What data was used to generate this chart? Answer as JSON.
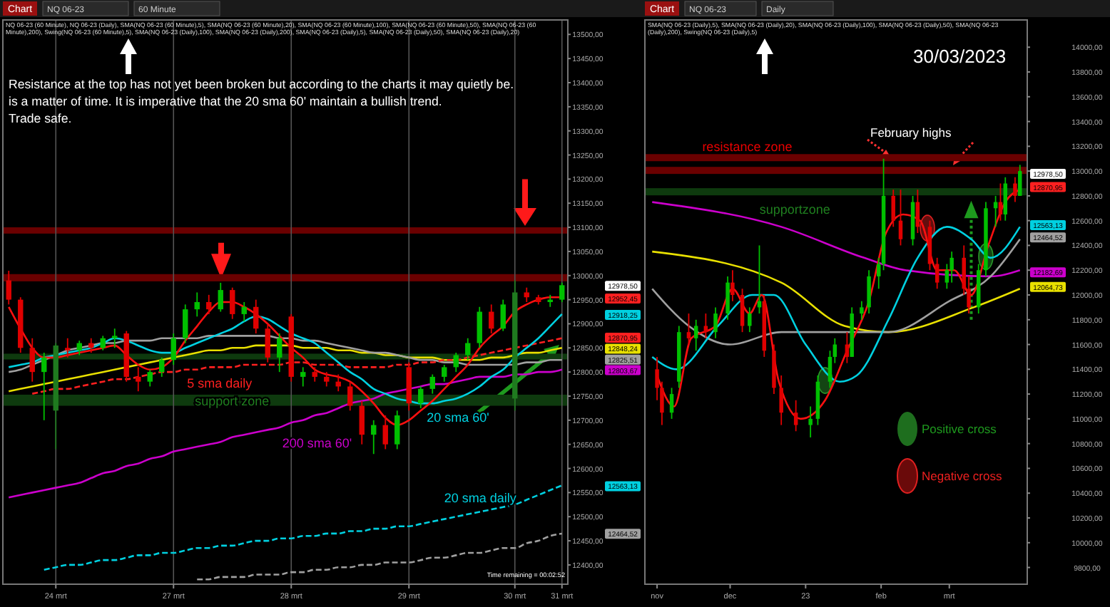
{
  "chart_data": [
    {
      "type": "candlestick",
      "ylim": [
        12360,
        13530
      ],
      "grid": "x",
      "categories": [
        null,
        null,
        null,
        null,
        "24 mrt",
        null,
        null,
        null,
        null,
        null,
        null,
        null,
        null,
        null,
        "27 mrt",
        null,
        null,
        null,
        null,
        null,
        null,
        null,
        null,
        null,
        "28 mrt",
        null,
        null,
        null,
        null,
        null,
        null,
        null,
        null,
        null,
        "29 mrt",
        null,
        null,
        null,
        null,
        null,
        null,
        null,
        null,
        "30 mrt",
        null,
        null,
        null,
        "31 mrt"
      ],
      "yticks": [
        {
          "value": 12400,
          "label": "12400,00"
        },
        {
          "value": 12450,
          "label": "12450,00"
        },
        {
          "value": 12500,
          "label": "12500,00"
        },
        {
          "value": 12550,
          "label": "12550,00"
        },
        {
          "value": 12600,
          "label": "12600,00"
        },
        {
          "value": 12650,
          "label": "12650,00"
        },
        {
          "value": 12700,
          "label": "12700,00"
        },
        {
          "value": 12750,
          "label": "12750,00"
        },
        {
          "value": 12800,
          "label": "12800,00"
        },
        {
          "value": 12850,
          "label": "12850,00"
        },
        {
          "value": 12900,
          "label": "12900,00"
        },
        {
          "value": 12950,
          "label": "12950,00"
        },
        {
          "value": 13000,
          "label": "13000,00"
        },
        {
          "value": 13050,
          "label": "13050,00"
        },
        {
          "value": 13100,
          "label": "13100,00"
        },
        {
          "value": 13150,
          "label": "13150,00"
        },
        {
          "value": 13200,
          "label": "13200,00"
        },
        {
          "value": 13250,
          "label": "13250,00"
        },
        {
          "value": 13300,
          "label": "13300,00"
        },
        {
          "value": 13350,
          "label": "13350,00"
        },
        {
          "value": 13400,
          "label": "13400,00"
        },
        {
          "value": 13450,
          "label": "13450,00"
        },
        {
          "value": 13500,
          "label": "13500,00"
        }
      ],
      "ohlc": [
        [
          12990,
          13010,
          12940,
          12950
        ],
        [
          12950,
          12955,
          12840,
          12850
        ],
        [
          12850,
          12870,
          12780,
          12800
        ],
        [
          12800,
          12840,
          12700,
          12830
        ],
        [
          12720,
          12860,
          12640,
          12855
        ],
        [
          12850,
          12870,
          12830,
          12845
        ],
        [
          12845,
          12865,
          12835,
          12860
        ],
        [
          12860,
          12870,
          12840,
          12850
        ],
        [
          12850,
          12875,
          12845,
          12870
        ],
        [
          12870,
          12890,
          12850,
          12875
        ],
        [
          12880,
          12885,
          12780,
          12790
        ],
        [
          12790,
          12810,
          12760,
          12780
        ],
        [
          12780,
          12805,
          12770,
          12800
        ],
        [
          12800,
          12830,
          12790,
          12825
        ],
        [
          12825,
          12880,
          12815,
          12870
        ],
        [
          12870,
          12940,
          12860,
          12930
        ],
        [
          12930,
          12965,
          12915,
          12945
        ],
        [
          12945,
          12960,
          12920,
          12930
        ],
        [
          12930,
          12985,
          12925,
          12970
        ],
        [
          12970,
          12975,
          12910,
          12920
        ],
        [
          12920,
          12945,
          12905,
          12935
        ],
        [
          12935,
          12950,
          12880,
          12890
        ],
        [
          12890,
          12900,
          12820,
          12830
        ],
        [
          12830,
          12880,
          12800,
          12870
        ],
        [
          12915,
          12920,
          12780,
          12790
        ],
        [
          12790,
          12810,
          12770,
          12800
        ],
        [
          12800,
          12810,
          12780,
          12790
        ],
        [
          12790,
          12800,
          12770,
          12780
        ],
        [
          12780,
          12795,
          12760,
          12770
        ],
        [
          12770,
          12780,
          12720,
          12730
        ],
        [
          12730,
          12740,
          12650,
          12670
        ],
        [
          12670,
          12700,
          12630,
          12690
        ],
        [
          12690,
          12710,
          12640,
          12650
        ],
        [
          12650,
          12720,
          12640,
          12710
        ],
        [
          12810,
          12820,
          12720,
          12735
        ],
        [
          12735,
          12770,
          12725,
          12765
        ],
        [
          12765,
          12795,
          12755,
          12790
        ],
        [
          12790,
          12815,
          12780,
          12810
        ],
        [
          12810,
          12840,
          12800,
          12835
        ],
        [
          12835,
          12870,
          12825,
          12860
        ],
        [
          12860,
          12935,
          12850,
          12925
        ],
        [
          12925,
          12940,
          12880,
          12890
        ],
        [
          12890,
          12950,
          12885,
          12940
        ],
        [
          12745,
          12990,
          12720,
          12965
        ],
        [
          12965,
          12975,
          12945,
          12955
        ],
        [
          12955,
          12960,
          12940,
          12945
        ],
        [
          12945,
          12960,
          12935,
          12950
        ],
        [
          12950,
          12985,
          12945,
          12980
        ]
      ],
      "colors": [
        "#e00000",
        "#e00000",
        "#e00000",
        "#00c000",
        "#1f7a1f",
        "#e00000",
        "#00c000",
        "#e00000",
        "#00c000",
        "#00c000",
        "#e00000",
        "#e00000",
        "#00c000",
        "#00c000",
        "#00c000",
        "#00c000",
        "#00c000",
        "#e00000",
        "#00c000",
        "#e00000",
        "#00c000",
        "#e00000",
        "#e00000",
        "#00c000",
        "#e00000",
        "#00c000",
        "#e00000",
        "#e00000",
        "#e00000",
        "#e00000",
        "#e00000",
        "#00c000",
        "#e00000",
        "#00c000",
        "#e00000",
        "#00c000",
        "#00c000",
        "#00c000",
        "#00c000",
        "#00c000",
        "#00c000",
        "#e00000",
        "#00c000",
        "#1f7a1f",
        "#e00000",
        "#e00000",
        "#00c000",
        "#00c000"
      ],
      "series": [
        {
          "type": "line",
          "color": "#cc00cc",
          "name": "200 sma 60'",
          "values": [
            12540,
            12545,
            12550,
            12555,
            12560,
            12565,
            12570,
            12580,
            12590,
            12595,
            12605,
            12610,
            12620,
            12625,
            12635,
            12640,
            12645,
            12650,
            12655,
            12665,
            12670,
            12675,
            12680,
            12685,
            12695,
            12700,
            12710,
            12715,
            12725,
            12735,
            12740,
            12745,
            12755,
            12760,
            12765,
            12770,
            12775,
            12775,
            12780,
            12785,
            12790,
            12790,
            12790,
            12795,
            12795,
            12800,
            12800,
            12805
          ]
        },
        {
          "type": "line",
          "color": "#00d0e0",
          "line_style": "dashed",
          "name": "20 sma daily",
          "values": [
            null,
            null,
            null,
            12390,
            12395,
            12400,
            12400,
            12405,
            12410,
            12410,
            12415,
            12420,
            12420,
            12425,
            12425,
            12430,
            12435,
            12435,
            12440,
            12440,
            12445,
            12450,
            12450,
            12455,
            12455,
            12460,
            12460,
            12465,
            12465,
            12470,
            12470,
            12475,
            12475,
            12480,
            12480,
            12485,
            12490,
            12495,
            12500,
            12505,
            12510,
            12515,
            12520,
            12525,
            12535,
            12545,
            12555,
            12565
          ]
        },
        {
          "type": "line",
          "color": "#a0a0a0",
          "line_style": "dashed",
          "values": [
            null,
            null,
            null,
            null,
            null,
            null,
            null,
            null,
            null,
            null,
            null,
            null,
            null,
            null,
            null,
            null,
            12370,
            12370,
            12375,
            12375,
            12375,
            12380,
            12380,
            12380,
            12385,
            12385,
            12390,
            12390,
            12395,
            12395,
            12400,
            12400,
            12405,
            12405,
            12405,
            12410,
            12415,
            12415,
            12420,
            12425,
            12425,
            12430,
            12435,
            12435,
            12445,
            12450,
            12460,
            12465
          ]
        },
        {
          "type": "line",
          "color": "#e8e000",
          "values": [
            12760,
            12765,
            12770,
            12775,
            12780,
            12785,
            12790,
            12795,
            12800,
            12805,
            12810,
            12815,
            12820,
            12825,
            12830,
            12835,
            12840,
            12845,
            12845,
            12850,
            12850,
            12855,
            12855,
            12855,
            12855,
            12850,
            12850,
            12850,
            12845,
            12845,
            12840,
            12840,
            12835,
            12835,
            12830,
            12830,
            12830,
            12825,
            12825,
            12825,
            12825,
            12830,
            12830,
            12835,
            12840,
            12840,
            12845,
            12850
          ]
        },
        {
          "type": "line",
          "color": "#a0a0a0",
          "values": [
            12800,
            12805,
            12815,
            12825,
            12835,
            12845,
            12850,
            12855,
            12860,
            12860,
            12865,
            12865,
            12865,
            12870,
            12870,
            12870,
            12870,
            12875,
            12875,
            12875,
            12875,
            12875,
            12875,
            12870,
            12870,
            12865,
            12865,
            12860,
            12855,
            12850,
            12845,
            12840,
            12840,
            12835,
            12830,
            12825,
            12825,
            12820,
            12820,
            12815,
            12815,
            12815,
            12815,
            12815,
            12820,
            12820,
            12825,
            12825
          ]
        },
        {
          "type": "line",
          "color": "#ff2020",
          "line_style": "dashed",
          "name": "5 sma daily",
          "values": [
            null,
            null,
            12755,
            12760,
            12765,
            12765,
            12770,
            12775,
            12780,
            12785,
            12785,
            12790,
            12795,
            12800,
            12800,
            12805,
            12805,
            12810,
            12810,
            12810,
            12815,
            12815,
            12815,
            12815,
            12820,
            12820,
            12815,
            12815,
            12815,
            12810,
            12810,
            12810,
            12810,
            12815,
            12815,
            12820,
            12820,
            12825,
            12825,
            12830,
            12835,
            12840,
            12845,
            12850,
            12855,
            12860,
            12865,
            12870
          ]
        },
        {
          "type": "line",
          "color": "#00d0e0",
          "name": "20 sma 60'",
          "values": [
            12810,
            12815,
            12820,
            12830,
            12835,
            12840,
            12845,
            12850,
            12860,
            12870,
            12865,
            12855,
            12845,
            12840,
            12840,
            12850,
            12860,
            12870,
            12880,
            12890,
            12905,
            12915,
            12910,
            12895,
            12880,
            12870,
            12860,
            12840,
            12820,
            12800,
            12785,
            12765,
            12755,
            12745,
            12740,
            12735,
            12735,
            12740,
            12745,
            12755,
            12770,
            12790,
            12805,
            12830,
            12850,
            12870,
            12895,
            12920
          ]
        },
        {
          "type": "line",
          "color": "#ff1010",
          "values": [
            12935,
            12890,
            12850,
            12830,
            12830,
            12835,
            12840,
            12845,
            12850,
            12855,
            12835,
            12815,
            12805,
            12810,
            12830,
            12865,
            12895,
            12925,
            12945,
            12945,
            12935,
            12920,
            12900,
            12875,
            12850,
            12830,
            12805,
            12795,
            12790,
            12780,
            12760,
            12735,
            12705,
            12690,
            12700,
            12720,
            12740,
            12765,
            12790,
            12815,
            12850,
            12875,
            12895,
            12925,
            12940,
            12950,
            12955,
            12955
          ]
        }
      ],
      "bands": [
        {
          "axis": "y",
          "from": 13087,
          "to": 13100,
          "color": "#6a0000"
        },
        {
          "axis": "y",
          "from": 12988,
          "to": 13003,
          "color": "#6a0000"
        },
        {
          "axis": "y",
          "from": 12826,
          "to": 12838,
          "color": "#0e3a0e"
        },
        {
          "axis": "y",
          "from": 12730,
          "to": 12753,
          "color": "#0e3a0e",
          "label": "support zone"
        }
      ],
      "annotations": [
        "Chart",
        "NQ 06-23",
        "60 Minute",
        "NQ 06-23 (60 Minute), NQ 06-23 (Daily), SMA(NQ 06-23 (60 Minute),5), SMA(NQ 06-23 (60 Minute),20), SMA(NQ 06-23 (60 Minute),100), SMA(NQ 06-23 (60 Minute),50), SMA(NQ 06-23 (60 Minute),200), Swing(NQ 06-23 (60 Minute),5), SMA(NQ 06-23 (Daily),100), SMA(NQ 06-23 (Daily),200), SMA(NQ 06-23 (Daily),5), SMA(NQ 06-23 (Daily),50), SMA(NQ 06-23 (Daily),20)",
        "Resistance at the top has not yet been broken but according to the charts it may quietly be.",
        "is a matter of time. It is imperative that the 20 sma 60' maintain a bullish trend.",
        "Trade safe.",
        "Time remaining = 00:02:52",
        "12978,50",
        "12952,45",
        "12918,25",
        "12870,95",
        "12848,24",
        "12825,51",
        "12803,67",
        "12563,13",
        "12464,52"
      ]
    },
    {
      "type": "candlestick",
      "xlim": [
        "2022-10-27",
        "2023-04-02"
      ],
      "ylim": [
        9665,
        14220
      ],
      "xticks": [
        {
          "value": "2022-11-01",
          "label": "nov"
        },
        {
          "value": "2022-12-01",
          "label": "dec"
        },
        {
          "value": "2023-01-01",
          "label": "23"
        },
        {
          "value": "2023-02-01",
          "label": "feb"
        },
        {
          "value": "2023-03-01",
          "label": "mrt"
        }
      ],
      "yticks": [
        {
          "value": 9800,
          "label": "9800,00"
        },
        {
          "value": 10000,
          "label": "10000,00"
        },
        {
          "value": 10200,
          "label": "10200,00"
        },
        {
          "value": 10400,
          "label": "10400,00"
        },
        {
          "value": 10600,
          "label": "10600,00"
        },
        {
          "value": 10800,
          "label": "10800,00"
        },
        {
          "value": 11000,
          "label": "11000,00"
        },
        {
          "value": 11200,
          "label": "11200,00"
        },
        {
          "value": 11400,
          "label": "11400,00"
        },
        {
          "value": 11600,
          "label": "11600,00"
        },
        {
          "value": 11800,
          "label": "11800,00"
        },
        {
          "value": 12000,
          "label": "12000,00"
        },
        {
          "value": 12200,
          "label": "12200,00"
        },
        {
          "value": 12400,
          "label": "12400,00"
        },
        {
          "value": 12600,
          "label": "12600,00"
        },
        {
          "value": 12800,
          "label": "12800,00"
        },
        {
          "value": 13000,
          "label": "13000,00"
        },
        {
          "value": 13200,
          "label": "13200,00"
        },
        {
          "value": 13400,
          "label": "13400,00"
        },
        {
          "value": 13600,
          "label": "13600,00"
        },
        {
          "value": 13800,
          "label": "13800,00"
        },
        {
          "value": 14000,
          "label": "14000,00"
        }
      ],
      "x": [
        "2022-11-01",
        "2022-11-03",
        "2022-11-07",
        "2022-11-10",
        "2022-11-14",
        "2022-11-17",
        "2022-11-21",
        "2022-11-25",
        "2022-11-30",
        "2022-12-02",
        "2022-12-06",
        "2022-12-09",
        "2022-12-13",
        "2022-12-15",
        "2022-12-19",
        "2022-12-22",
        "2022-12-28",
        "2023-01-03",
        "2023-01-06",
        "2023-01-11",
        "2023-01-13",
        "2023-01-18",
        "2023-01-20",
        "2023-01-24",
        "2023-01-27",
        "2023-01-31",
        "2023-02-02",
        "2023-02-06",
        "2023-02-09",
        "2023-02-14",
        "2023-02-16",
        "2023-02-21",
        "2023-02-24",
        "2023-02-28",
        "2023-03-02",
        "2023-03-07",
        "2023-03-09",
        "2023-03-13",
        "2023-03-16",
        "2023-03-20",
        "2023-03-22",
        "2023-03-24",
        "2023-03-28",
        "2023-03-30"
      ],
      "ohlc": [
        [
          11400,
          11500,
          11150,
          11250
        ],
        [
          11250,
          11300,
          10950,
          11050
        ],
        [
          11050,
          11250,
          11000,
          11200
        ],
        [
          11300,
          11750,
          11250,
          11700
        ],
        [
          11700,
          11850,
          11600,
          11650
        ],
        [
          11650,
          11800,
          11550,
          11750
        ],
        [
          11750,
          11850,
          11650,
          11700
        ],
        [
          11700,
          11900,
          11650,
          11850
        ],
        [
          11850,
          12150,
          11800,
          12100
        ],
        [
          12100,
          12200,
          11950,
          12000
        ],
        [
          12000,
          12050,
          11700,
          11750
        ],
        [
          11750,
          11900,
          11700,
          11850
        ],
        [
          11900,
          12400,
          11850,
          11950
        ],
        [
          11950,
          12000,
          11500,
          11550
        ],
        [
          11550,
          11600,
          11200,
          11250
        ],
        [
          11250,
          11350,
          10950,
          11050
        ],
        [
          11050,
          11150,
          10900,
          10950
        ],
        [
          10950,
          11100,
          10850,
          11000
        ],
        [
          11000,
          11350,
          10950,
          11300
        ],
        [
          11300,
          11550,
          11250,
          11500
        ],
        [
          11500,
          11650,
          11450,
          11600
        ],
        [
          11600,
          11700,
          11450,
          11500
        ],
        [
          11500,
          11900,
          11500,
          11850
        ],
        [
          11850,
          11950,
          11800,
          11900
        ],
        [
          11900,
          12200,
          11850,
          12150
        ],
        [
          12150,
          12300,
          12050,
          12250
        ],
        [
          12250,
          13100,
          12200,
          12800
        ],
        [
          12800,
          12850,
          12550,
          12600
        ],
        [
          12600,
          12850,
          12400,
          12450
        ],
        [
          12450,
          12800,
          12400,
          12750
        ],
        [
          12750,
          12850,
          12500,
          12550
        ],
        [
          12550,
          12600,
          12200,
          12250
        ],
        [
          12250,
          12300,
          12050,
          12100
        ],
        [
          12100,
          12250,
          12050,
          12200
        ],
        [
          12200,
          12350,
          12100,
          12300
        ],
        [
          12300,
          12400,
          12000,
          12050
        ],
        [
          12050,
          12150,
          11850,
          11900
        ],
        [
          11900,
          12250,
          11850,
          12200
        ],
        [
          12200,
          12750,
          12150,
          12700
        ],
        [
          12700,
          12800,
          12550,
          12750
        ],
        [
          12750,
          12900,
          12600,
          12650
        ],
        [
          12650,
          12950,
          12600,
          12900
        ],
        [
          12900,
          12950,
          12750,
          12800
        ],
        [
          12800,
          13050,
          12800,
          13000
        ]
      ],
      "colors": [
        "#e00000",
        "#e00000",
        "#00c000",
        "#00c000",
        "#e00000",
        "#00c000",
        "#e00000",
        "#00c000",
        "#00c000",
        "#e00000",
        "#e00000",
        "#00c000",
        "#00c000",
        "#e00000",
        "#e00000",
        "#e00000",
        "#e00000",
        "#00c000",
        "#00c000",
        "#00c000",
        "#00c000",
        "#e00000",
        "#00c000",
        "#00c000",
        "#00c000",
        "#00c000",
        "#00c000",
        "#e00000",
        "#e00000",
        "#00c000",
        "#e00000",
        "#e00000",
        "#e00000",
        "#00c000",
        "#00c000",
        "#e00000",
        "#e00000",
        "#00c000",
        "#00c000",
        "#00c000",
        "#e00000",
        "#00c000",
        "#e00000",
        "#00c000"
      ],
      "series": [
        {
          "type": "line",
          "color": "#cc00cc",
          "x": [
            "2022-10-30",
            "2022-12-22",
            "2023-01-25",
            "2023-02-11",
            "2023-03-18",
            "2023-03-30"
          ],
          "values": [
            12750,
            12550,
            12300,
            12200,
            12150,
            12200
          ]
        },
        {
          "type": "line",
          "color": "#e8e000",
          "x": [
            "2022-10-30",
            "2022-12-22",
            "2023-01-17",
            "2023-02-04",
            "2023-03-11",
            "2023-03-30"
          ],
          "values": [
            12350,
            12100,
            11750,
            11700,
            11900,
            12050
          ]
        },
        {
          "type": "line",
          "color": "#a0a0a0",
          "x": [
            "2022-10-30",
            "2022-11-14",
            "2022-12-01",
            "2022-12-22",
            "2023-01-17",
            "2023-02-04",
            "2023-03-01",
            "2023-03-18",
            "2023-03-30"
          ],
          "values": [
            12050,
            11750,
            11600,
            11700,
            11700,
            11700,
            11950,
            12150,
            12450
          ]
        },
        {
          "type": "line",
          "color": "#00d0e0",
          "x": [
            "2022-10-30",
            "2022-11-09",
            "2022-11-26",
            "2022-12-10",
            "2022-12-19",
            "2023-01-01",
            "2023-01-15",
            "2023-01-22",
            "2023-02-04",
            "2023-02-16",
            "2023-02-28",
            "2023-03-10",
            "2023-03-18",
            "2023-03-30"
          ],
          "values": [
            11500,
            11400,
            11750,
            12000,
            12000,
            11600,
            11300,
            11350,
            11800,
            12300,
            12550,
            12450,
            12300,
            12550
          ]
        },
        {
          "type": "line",
          "color": "#ff1010",
          "x": [
            "2022-11-01",
            "2022-11-08",
            "2022-11-15",
            "2022-11-25",
            "2022-12-02",
            "2022-12-09",
            "2022-12-14",
            "2022-12-21",
            "2022-12-30",
            "2023-01-09",
            "2023-01-18",
            "2023-01-27",
            "2023-02-03",
            "2023-02-10",
            "2023-02-17",
            "2023-02-24",
            "2023-03-03",
            "2023-03-10",
            "2023-03-17",
            "2023-03-24",
            "2023-03-30"
          ],
          "values": [
            11350,
            11100,
            11650,
            11750,
            12050,
            11850,
            12000,
            11300,
            11000,
            11150,
            11550,
            11950,
            12500,
            12650,
            12600,
            12200,
            12200,
            12000,
            12400,
            12750,
            12850
          ]
        }
      ],
      "bands": [
        {
          "axis": "y",
          "from": 13080,
          "to": 13137,
          "color": "#6a0000",
          "label": "resistance zone"
        },
        {
          "axis": "y",
          "from": 12977,
          "to": 13034,
          "color": "#6a0000"
        },
        {
          "axis": "y",
          "from": 12804,
          "to": 12862,
          "color": "#0e3a0e",
          "label": "supportzone"
        }
      ],
      "annotations": [
        "Chart",
        "NQ 06-23",
        "Daily",
        "SMA(NQ 06-23 (Daily),5), SMA(NQ 06-23 (Daily),20), SMA(NQ 06-23 (Daily),100), SMA(NQ 06-23 (Daily),50), SMA(NQ 06-23 (Daily),200), Swing(NQ 06-23 (Daily),5)",
        "30/03/2023",
        "February highs",
        "Positive cross",
        "Negative cross",
        "12978,50",
        "12870,95",
        "12563,13",
        "12464,52",
        "12182,69",
        "12064,73"
      ]
    }
  ]
}
